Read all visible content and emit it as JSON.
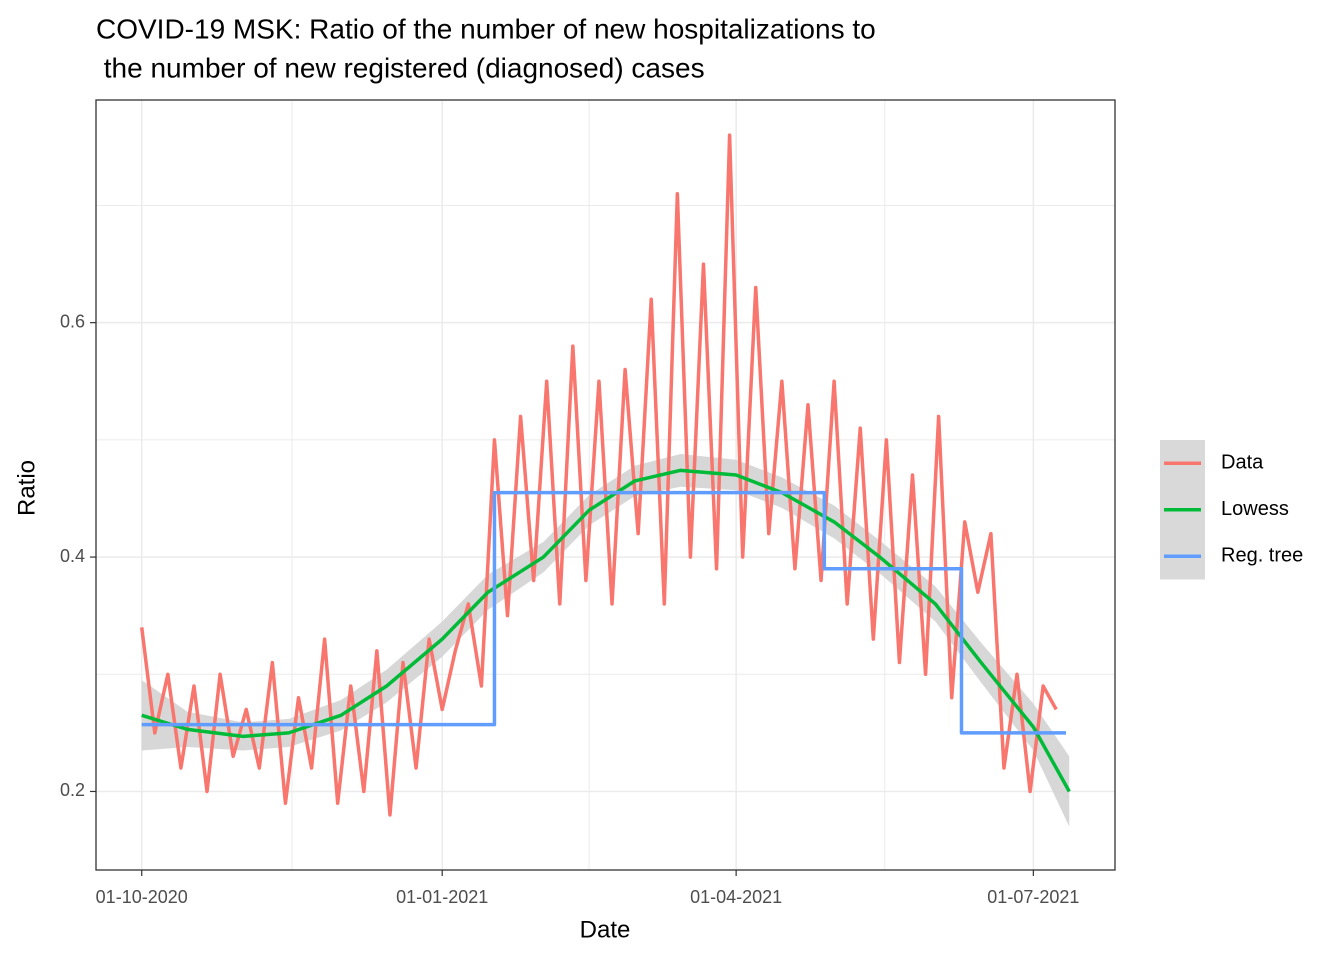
{
  "chart_data": {
    "type": "line",
    "title": [
      "COVID-19 MSK: Ratio of the number of new hospitalizations to",
      " the number of new registered (diagnosed) cases"
    ],
    "x_label": "Date",
    "y_label": "Ratio",
    "xlim": [
      "2020-09-17",
      "2021-07-26"
    ],
    "xticks": [
      {
        "value": "2020-10-01",
        "label": "01-10-2020"
      },
      {
        "value": "2021-01-01",
        "label": "01-01-2021"
      },
      {
        "value": "2021-04-01",
        "label": "01-04-2021"
      },
      {
        "value": "2021-07-01",
        "label": "01-07-2021"
      }
    ],
    "ylim": [
      0.133,
      0.79
    ],
    "yticks": [
      0.2,
      0.4,
      0.6
    ],
    "grid": true,
    "legend": "right",
    "series": [
      {
        "name": "Data",
        "color": "#F8766D",
        "x": [
          "2020-10-01",
          "2020-10-05",
          "2020-10-09",
          "2020-10-13",
          "2020-10-17",
          "2020-10-21",
          "2020-10-25",
          "2020-10-29",
          "2020-11-02",
          "2020-11-06",
          "2020-11-10",
          "2020-11-14",
          "2020-11-18",
          "2020-11-22",
          "2020-11-26",
          "2020-11-30",
          "2020-12-04",
          "2020-12-08",
          "2020-12-12",
          "2020-12-16",
          "2020-12-20",
          "2020-12-24",
          "2020-12-28",
          "2021-01-01",
          "2021-01-05",
          "2021-01-09",
          "2021-01-13",
          "2021-01-17",
          "2021-01-21",
          "2021-01-25",
          "2021-01-29",
          "2021-02-02",
          "2021-02-06",
          "2021-02-10",
          "2021-02-14",
          "2021-02-18",
          "2021-02-22",
          "2021-02-26",
          "2021-03-02",
          "2021-03-06",
          "2021-03-10",
          "2021-03-14",
          "2021-03-18",
          "2021-03-22",
          "2021-03-26",
          "2021-03-30",
          "2021-04-03",
          "2021-04-07",
          "2021-04-11",
          "2021-04-15",
          "2021-04-19",
          "2021-04-23",
          "2021-04-27",
          "2021-05-01",
          "2021-05-05",
          "2021-05-09",
          "2021-05-13",
          "2021-05-17",
          "2021-05-21",
          "2021-05-25",
          "2021-05-29",
          "2021-06-02",
          "2021-06-06",
          "2021-06-10",
          "2021-06-14",
          "2021-06-18",
          "2021-06-22",
          "2021-06-26",
          "2021-06-30",
          "2021-07-04",
          "2021-07-08"
        ],
        "values": [
          0.34,
          0.25,
          0.3,
          0.22,
          0.29,
          0.2,
          0.3,
          0.23,
          0.27,
          0.22,
          0.31,
          0.19,
          0.28,
          0.22,
          0.33,
          0.19,
          0.29,
          0.2,
          0.32,
          0.18,
          0.31,
          0.22,
          0.33,
          0.27,
          0.32,
          0.36,
          0.29,
          0.5,
          0.35,
          0.52,
          0.38,
          0.55,
          0.36,
          0.58,
          0.38,
          0.55,
          0.36,
          0.56,
          0.42,
          0.62,
          0.36,
          0.71,
          0.4,
          0.65,
          0.39,
          0.76,
          0.4,
          0.63,
          0.42,
          0.55,
          0.39,
          0.53,
          0.38,
          0.55,
          0.36,
          0.51,
          0.33,
          0.5,
          0.31,
          0.47,
          0.3,
          0.52,
          0.28,
          0.43,
          0.37,
          0.42,
          0.22,
          0.3,
          0.2,
          0.29,
          0.27
        ]
      },
      {
        "name": "Lowess",
        "color": "#00BA38",
        "x": [
          "2020-10-01",
          "2020-10-15",
          "2020-11-01",
          "2020-11-15",
          "2020-12-01",
          "2020-12-15",
          "2021-01-01",
          "2021-01-15",
          "2021-02-01",
          "2021-02-15",
          "2021-03-01",
          "2021-03-15",
          "2021-04-01",
          "2021-04-15",
          "2021-05-01",
          "2021-05-15",
          "2021-06-01",
          "2021-06-15",
          "2021-07-01",
          "2021-07-12"
        ],
        "values": [
          0.265,
          0.253,
          0.247,
          0.25,
          0.265,
          0.29,
          0.33,
          0.37,
          0.4,
          0.44,
          0.465,
          0.474,
          0.47,
          0.455,
          0.43,
          0.4,
          0.36,
          0.31,
          0.255,
          0.2
        ],
        "lower": [
          0.235,
          0.238,
          0.235,
          0.238,
          0.252,
          0.276,
          0.315,
          0.355,
          0.387,
          0.427,
          0.452,
          0.46,
          0.457,
          0.442,
          0.416,
          0.386,
          0.345,
          0.293,
          0.235,
          0.17
        ],
        "upper": [
          0.295,
          0.268,
          0.259,
          0.262,
          0.278,
          0.304,
          0.345,
          0.385,
          0.413,
          0.453,
          0.478,
          0.488,
          0.483,
          0.468,
          0.444,
          0.414,
          0.375,
          0.327,
          0.275,
          0.23
        ],
        "band_color": "#d3d3d3"
      },
      {
        "name": "Reg. tree",
        "color": "#619CFF",
        "step": "post",
        "x": [
          "2020-10-01",
          "2021-01-17",
          "2021-04-28",
          "2021-06-09",
          "2021-07-11"
        ],
        "values": [
          0.257,
          0.455,
          0.39,
          0.25,
          0.25
        ]
      }
    ]
  }
}
